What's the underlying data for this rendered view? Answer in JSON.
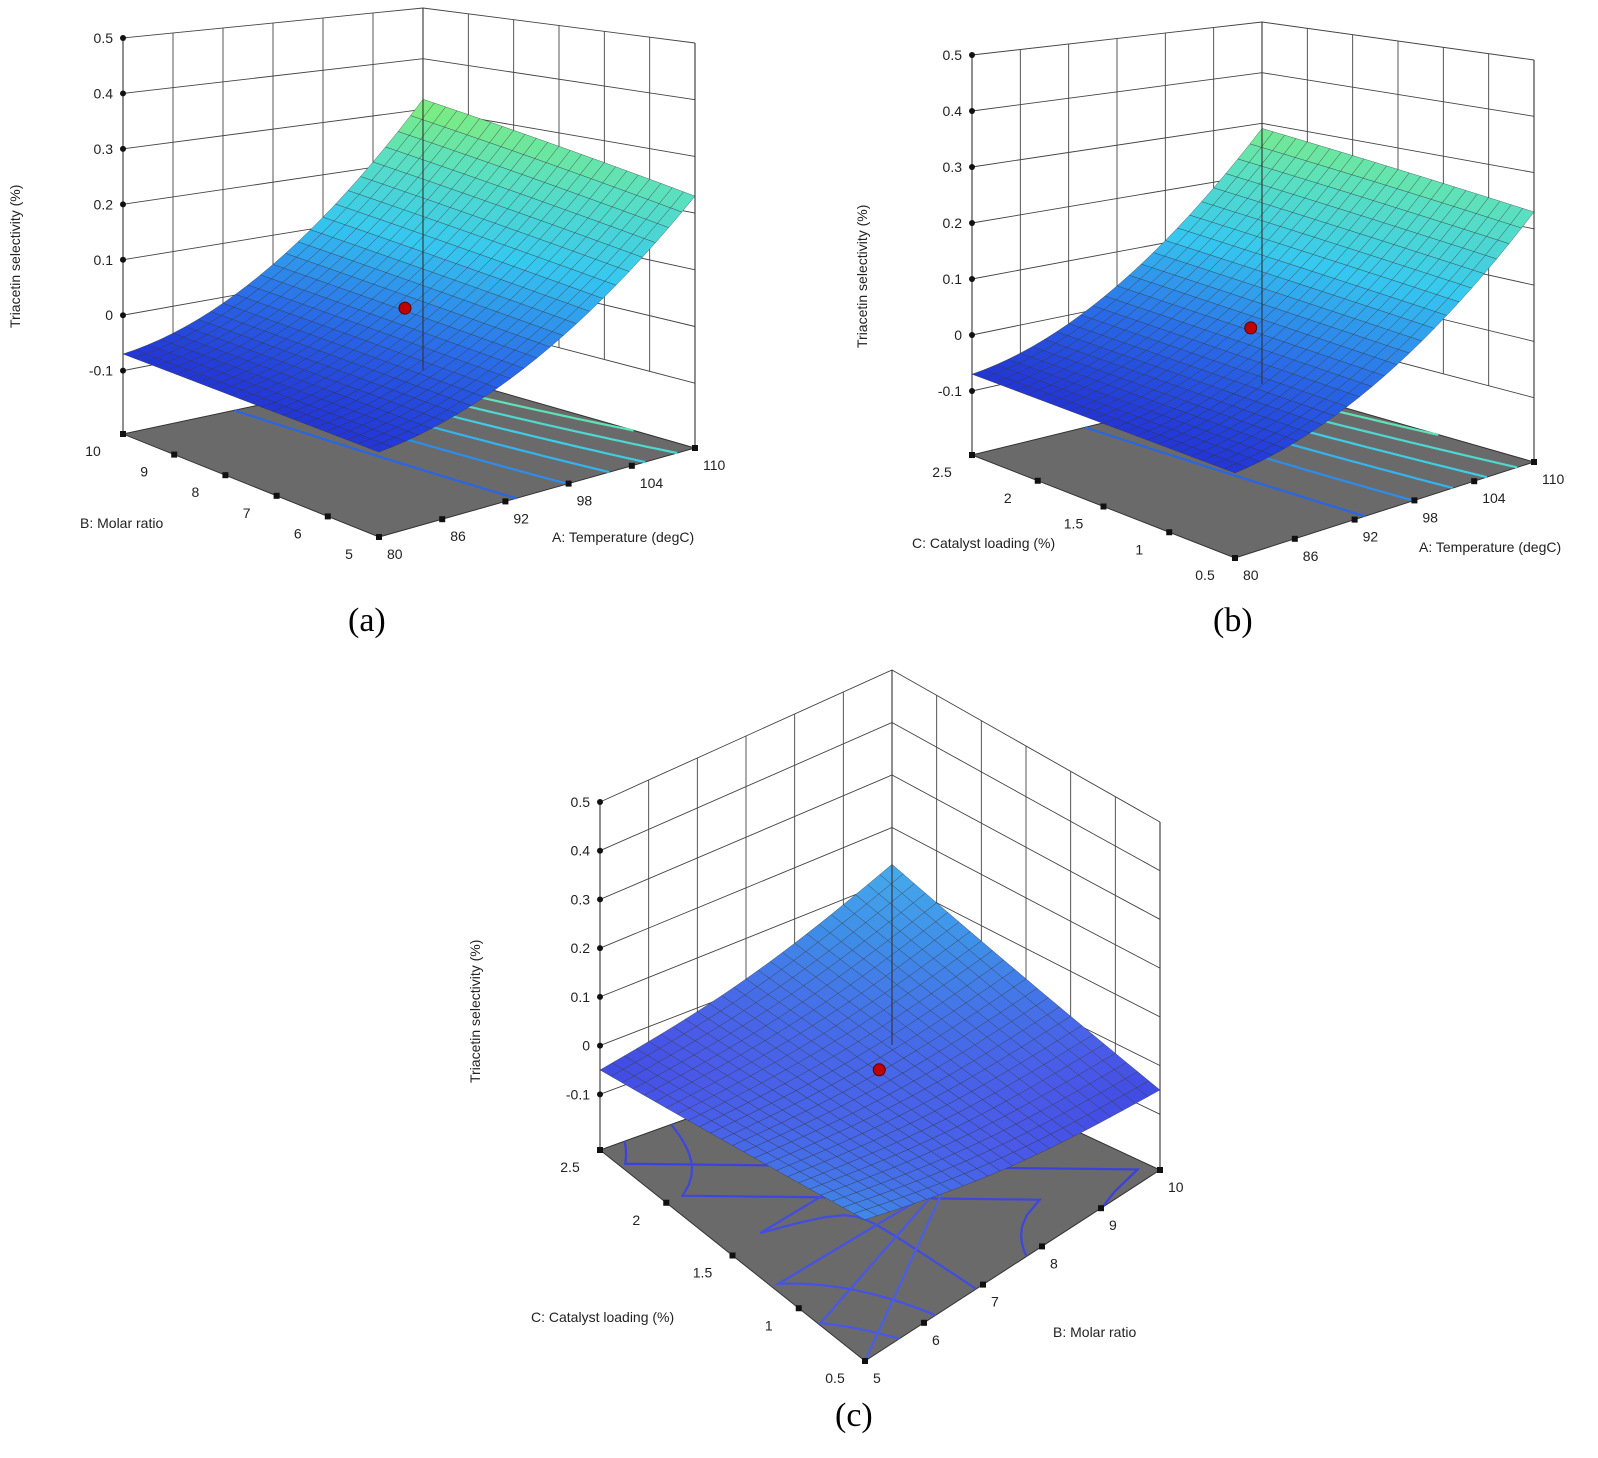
{
  "chart_data": [
    {
      "type": "surface3d",
      "caption": "(a)",
      "zlabel": "Triacetin selectivity (%)",
      "xlabel": "A: Temperature (degC)",
      "ylabel": "B: Molar ratio",
      "x_ticks": [
        "80",
        "86",
        "92",
        "98",
        "104",
        "110"
      ],
      "y_ticks": [
        "5",
        "6",
        "7",
        "8",
        "9",
        "10"
      ],
      "z_ticks": [
        "-0.1",
        "0",
        "0.1",
        "0.2",
        "0.3",
        "0.4",
        "0.5"
      ],
      "xlim": [
        80,
        110
      ],
      "ylim": [
        5,
        10
      ],
      "zlim": [
        -0.1,
        0.5
      ],
      "surface_corners": {
        "x80_y5": -0.07,
        "x80_y10": -0.07,
        "x110_y5": 0.23,
        "x110_y10": 0.32
      },
      "design_point": {
        "x": 95,
        "y": 7.5,
        "z": 0.05
      },
      "color_ramp": [
        "#2020d0",
        "#2a6ee8",
        "#36c8f0",
        "#5ae0c0",
        "#86f070"
      ]
    },
    {
      "type": "surface3d",
      "caption": "(b)",
      "zlabel": "Triacetin selectivity (%)",
      "xlabel": "A: Temperature (degC)",
      "ylabel": "C: Catalyst loading (%)",
      "x_ticks": [
        "80",
        "86",
        "92",
        "98",
        "104",
        "110"
      ],
      "y_ticks": [
        "0.5",
        "1",
        "1.5",
        "2",
        "2.5"
      ],
      "z_ticks": [
        "-0.1",
        "0",
        "0.1",
        "0.2",
        "0.3",
        "0.4",
        "0.5"
      ],
      "xlim": [
        80,
        110
      ],
      "ylim": [
        0.5,
        2.5
      ],
      "zlim": [
        -0.1,
        0.5
      ],
      "surface_corners": {
        "x80_y5": -0.07,
        "x80_y10": -0.07,
        "x110_y5": 0.23,
        "x110_y10": 0.29
      },
      "design_point": {
        "x": 95,
        "y": 1.5,
        "z": 0.05
      },
      "color_ramp": [
        "#2020d0",
        "#2a6ee8",
        "#36c8f0",
        "#5ae0c0",
        "#86f070"
      ]
    },
    {
      "type": "surface3d",
      "caption": "(c)",
      "zlabel": "Triacetin selectivity (%)",
      "xlabel": "B: Molar ratio",
      "ylabel": "C: Catalyst loading (%)",
      "x_ticks": [
        "5",
        "6",
        "7",
        "8",
        "9",
        "10"
      ],
      "y_ticks": [
        "0.5",
        "1",
        "1.5",
        "2",
        "2.5"
      ],
      "z_ticks": [
        "-0.1",
        "0",
        "0.1",
        "0.2",
        "0.3",
        "0.4",
        "0.5"
      ],
      "xlim": [
        5,
        10
      ],
      "ylim": [
        0.5,
        2.5
      ],
      "zlim": [
        -0.1,
        0.5
      ],
      "surface_corners": {
        "x5_y0.5": 0.06,
        "x5_y2.5": -0.05,
        "x10_y0.5": -0.05,
        "x10_y2.5": 0.13
      },
      "design_point": {
        "x": 7.5,
        "y": 1.5,
        "z": 0.03
      },
      "color_ramp": [
        "#3030d8",
        "#4a5ae8",
        "#3f8ee8",
        "#48b6ee"
      ]
    }
  ]
}
